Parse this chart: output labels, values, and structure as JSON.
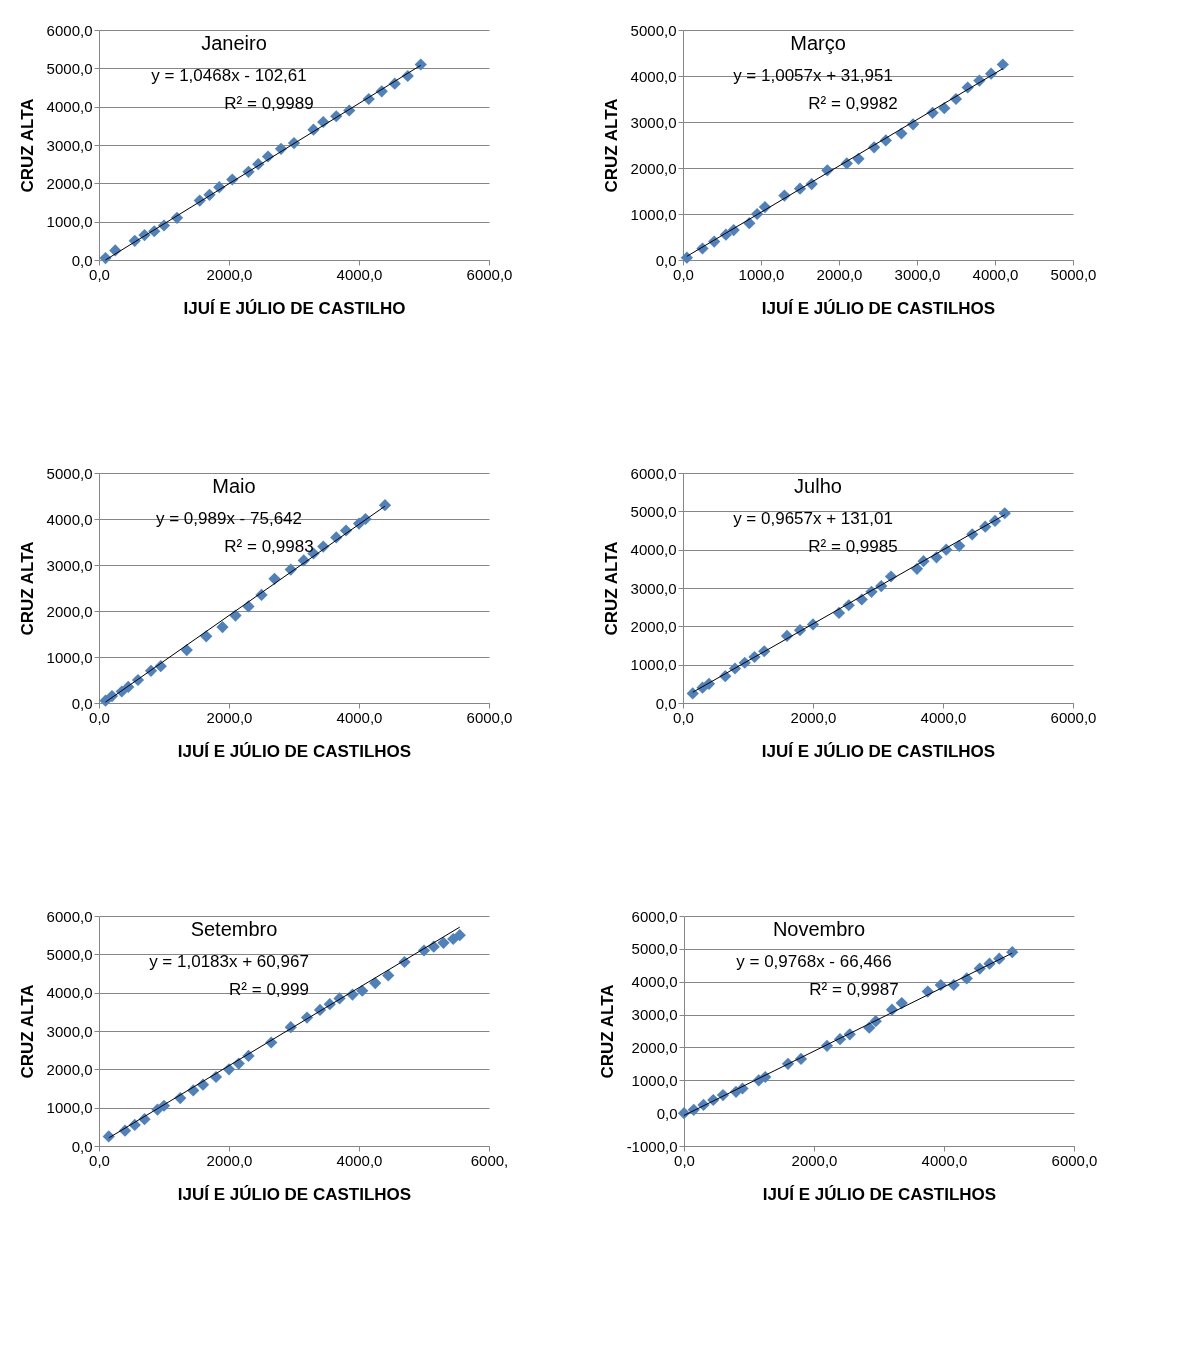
{
  "chart_data": [
    {
      "type": "scatter",
      "title": "Janeiro",
      "xlabel": "IJUÍ E JÚLIO DE CASTILHO",
      "ylabel": "CRUZ ALTA",
      "annotations": [
        "y = 1,0468x - 102,61",
        "R² = 0,9989"
      ],
      "grid": "y",
      "xlim": [
        0,
        6000
      ],
      "ylim": [
        0,
        6000
      ],
      "xticks": [
        {
          "value": 0,
          "label": "0,0"
        },
        {
          "value": 2000,
          "label": "2000,0"
        },
        {
          "value": 4000,
          "label": "4000,0"
        },
        {
          "value": 6000,
          "label": "6000,0"
        }
      ],
      "yticks": [
        {
          "value": 0,
          "label": "0,0"
        },
        {
          "value": 1000,
          "label": "1000,0"
        },
        {
          "value": 2000,
          "label": "2000,0"
        },
        {
          "value": 3000,
          "label": "3000,0"
        },
        {
          "value": 4000,
          "label": "4000,0"
        },
        {
          "value": 5000,
          "label": "5000,0"
        },
        {
          "value": 6000,
          "label": "6000,0"
        }
      ],
      "series": [
        {
          "type": "scatter",
          "marker": "diamond",
          "color": "#4f81bd",
          "x": [
            100,
            250,
            550,
            700,
            850,
            1000,
            1200,
            1550,
            1700,
            1850,
            2050,
            2300,
            2450,
            2600,
            2800,
            3000,
            3300,
            3450,
            3650,
            3850,
            4150,
            4350,
            4550,
            4750,
            4950
          ],
          "values": [
            50,
            250,
            500,
            650,
            750,
            900,
            1100,
            1550,
            1700,
            1900,
            2100,
            2300,
            2500,
            2700,
            2900,
            3050,
            3400,
            3600,
            3750,
            3900,
            4200,
            4400,
            4600,
            4800,
            5100
          ]
        },
        {
          "type": "line",
          "color": "#000000",
          "x": [
            100,
            4950
          ],
          "values": [
            0,
            5080
          ]
        }
      ]
    },
    {
      "type": "scatter",
      "title": "Março",
      "xlabel": "IJUÍ E JÚLIO DE CASTILHOS",
      "ylabel": "CRUZ ALTA",
      "annotations": [
        "y = 1,0057x + 31,951",
        "R² = 0,9982"
      ],
      "grid": "y",
      "xlim": [
        0,
        5000
      ],
      "ylim": [
        0,
        5000
      ],
      "xticks": [
        {
          "value": 0,
          "label": "0,0"
        },
        {
          "value": 1000,
          "label": "1000,0"
        },
        {
          "value": 2000,
          "label": "2000,0"
        },
        {
          "value": 3000,
          "label": "3000,0"
        },
        {
          "value": 4000,
          "label": "4000,0"
        },
        {
          "value": 5000,
          "label": "5000,0"
        }
      ],
      "yticks": [
        {
          "value": 0,
          "label": "0,0"
        },
        {
          "value": 1000,
          "label": "1000,0"
        },
        {
          "value": 2000,
          "label": "2000,0"
        },
        {
          "value": 3000,
          "label": "3000,0"
        },
        {
          "value": 4000,
          "label": "4000,0"
        },
        {
          "value": 5000,
          "label": "5000,0"
        }
      ],
      "series": [
        {
          "type": "scatter",
          "marker": "diamond",
          "color": "#4f81bd",
          "x": [
            50,
            250,
            400,
            550,
            650,
            850,
            950,
            1050,
            1300,
            1500,
            1650,
            1850,
            2100,
            2250,
            2450,
            2600,
            2800,
            2950,
            3200,
            3350,
            3500,
            3650,
            3800,
            3950,
            4100
          ],
          "values": [
            50,
            250,
            400,
            550,
            650,
            800,
            1000,
            1150,
            1400,
            1550,
            1650,
            1950,
            2100,
            2200,
            2450,
            2600,
            2750,
            2950,
            3200,
            3300,
            3500,
            3750,
            3900,
            4050,
            4250
          ]
        },
        {
          "type": "line",
          "color": "#000000",
          "x": [
            50,
            4100
          ],
          "values": [
            80,
            4160
          ]
        }
      ]
    },
    {
      "type": "scatter",
      "title": "Maio",
      "xlabel": "IJUÍ E JÚLIO DE CASTILHOS",
      "ylabel": "CRUZ ALTA",
      "annotations": [
        "y = 0,989x - 75,642",
        "R² = 0,9983"
      ],
      "grid": "y",
      "xlim": [
        0,
        6000
      ],
      "ylim": [
        0,
        5000
      ],
      "xticks": [
        {
          "value": 0,
          "label": "0,0"
        },
        {
          "value": 2000,
          "label": "2000,0"
        },
        {
          "value": 4000,
          "label": "4000,0"
        },
        {
          "value": 6000,
          "label": "6000,0"
        }
      ],
      "yticks": [
        {
          "value": 0,
          "label": "0,0"
        },
        {
          "value": 1000,
          "label": "1000,0"
        },
        {
          "value": 2000,
          "label": "2000,0"
        },
        {
          "value": 3000,
          "label": "3000,0"
        },
        {
          "value": 4000,
          "label": "4000,0"
        },
        {
          "value": 5000,
          "label": "5000,0"
        }
      ],
      "series": [
        {
          "type": "scatter",
          "marker": "diamond",
          "color": "#4f81bd",
          "x": [
            100,
            200,
            350,
            450,
            600,
            800,
            950,
            1350,
            1650,
            1900,
            2100,
            2300,
            2500,
            2700,
            2950,
            3150,
            3300,
            3450,
            3650,
            3800,
            4000,
            4100,
            4400
          ],
          "values": [
            50,
            150,
            250,
            350,
            500,
            700,
            800,
            1150,
            1450,
            1650,
            1900,
            2100,
            2350,
            2700,
            2900,
            3100,
            3250,
            3400,
            3600,
            3750,
            3900,
            4000,
            4300
          ]
        },
        {
          "type": "line",
          "color": "#000000",
          "x": [
            100,
            4400
          ],
          "values": [
            20,
            4280
          ]
        }
      ]
    },
    {
      "type": "scatter",
      "title": "Julho",
      "xlabel": "IJUÍ E JÚLIO DE CASTILHOS",
      "ylabel": "CRUZ ALTA",
      "annotations": [
        "y = 0,9657x + 131,01",
        "R² = 0,9985"
      ],
      "grid": "y",
      "xlim": [
        0,
        6000
      ],
      "ylim": [
        0,
        6000
      ],
      "xticks": [
        {
          "value": 0,
          "label": "0,0"
        },
        {
          "value": 2000,
          "label": "2000,0"
        },
        {
          "value": 4000,
          "label": "4000,0"
        },
        {
          "value": 6000,
          "label": "6000,0"
        }
      ],
      "yticks": [
        {
          "value": 0,
          "label": "0,0"
        },
        {
          "value": 1000,
          "label": "1000,0"
        },
        {
          "value": 2000,
          "label": "2000,0"
        },
        {
          "value": 3000,
          "label": "3000,0"
        },
        {
          "value": 4000,
          "label": "4000,0"
        },
        {
          "value": 5000,
          "label": "5000,0"
        },
        {
          "value": 6000,
          "label": "6000,0"
        }
      ],
      "series": [
        {
          "type": "scatter",
          "marker": "diamond",
          "color": "#4f81bd",
          "x": [
            150,
            300,
            400,
            650,
            800,
            950,
            1100,
            1250,
            1600,
            1800,
            2000,
            2400,
            2550,
            2750,
            2900,
            3050,
            3200,
            3600,
            3700,
            3900,
            4050,
            4250,
            4450,
            4650,
            4800,
            4950
          ],
          "values": [
            250,
            400,
            500,
            700,
            900,
            1050,
            1200,
            1350,
            1750,
            1900,
            2050,
            2350,
            2550,
            2700,
            2900,
            3050,
            3300,
            3500,
            3700,
            3800,
            4000,
            4100,
            4400,
            4600,
            4750,
            4950
          ]
        },
        {
          "type": "line",
          "color": "#000000",
          "x": [
            150,
            4950
          ],
          "values": [
            280,
            4910
          ]
        }
      ]
    },
    {
      "type": "scatter",
      "title": "Setembro",
      "xlabel": "IJUÍ E JÚLIO DE CASTILHOS",
      "ylabel": "CRUZ ALTA",
      "annotations": [
        "y = 1,0183x + 60,967",
        "R² = 0,999"
      ],
      "grid": "y",
      "xlim": [
        0,
        6000
      ],
      "ylim": [
        0,
        6000
      ],
      "xticks": [
        {
          "value": 0,
          "label": "0,0"
        },
        {
          "value": 2000,
          "label": "2000,0"
        },
        {
          "value": 4000,
          "label": "4000,0"
        },
        {
          "value": 6000,
          "label": "6000,"
        }
      ],
      "yticks": [
        {
          "value": 0,
          "label": "0,0"
        },
        {
          "value": 1000,
          "label": "1000,0"
        },
        {
          "value": 2000,
          "label": "2000,0"
        },
        {
          "value": 3000,
          "label": "3000,0"
        },
        {
          "value": 4000,
          "label": "4000,0"
        },
        {
          "value": 5000,
          "label": "5000,0"
        },
        {
          "value": 6000,
          "label": "6000,0"
        }
      ],
      "series": [
        {
          "type": "scatter",
          "marker": "diamond",
          "color": "#4f81bd",
          "x": [
            150,
            400,
            550,
            700,
            900,
            1000,
            1250,
            1450,
            1600,
            1800,
            2000,
            2150,
            2300,
            2650,
            2950,
            3200,
            3400,
            3550,
            3700,
            3900,
            4050,
            4250,
            4450,
            4700,
            5000,
            5150,
            5300,
            5450,
            5550
          ],
          "values": [
            250,
            400,
            550,
            700,
            950,
            1050,
            1250,
            1450,
            1600,
            1800,
            2000,
            2150,
            2350,
            2700,
            3100,
            3350,
            3550,
            3700,
            3850,
            3950,
            4050,
            4250,
            4450,
            4800,
            5100,
            5200,
            5300,
            5400,
            5500
          ]
        },
        {
          "type": "line",
          "color": "#000000",
          "x": [
            150,
            5550
          ],
          "values": [
            210,
            5710
          ]
        }
      ]
    },
    {
      "type": "scatter",
      "title": "Novembro",
      "xlabel": "IJUÍ E JÚLIO DE CASTILHOS",
      "ylabel": "CRUZ ALTA",
      "annotations": [
        "y = 0,9768x - 66,466",
        "R² = 0,9987"
      ],
      "grid": "y",
      "xlim": [
        0,
        6000
      ],
      "ylim": [
        -1000,
        6000
      ],
      "xticks": [
        {
          "value": 0,
          "label": "0,0"
        },
        {
          "value": 2000,
          "label": "2000,0"
        },
        {
          "value": 4000,
          "label": "4000,0"
        },
        {
          "value": 6000,
          "label": "6000,0"
        }
      ],
      "yticks": [
        {
          "value": -1000,
          "label": "-1000,0"
        },
        {
          "value": 0,
          "label": "0,0"
        },
        {
          "value": 1000,
          "label": "1000,0"
        },
        {
          "value": 2000,
          "label": "2000,0"
        },
        {
          "value": 3000,
          "label": "3000,0"
        },
        {
          "value": 4000,
          "label": "4000,0"
        },
        {
          "value": 5000,
          "label": "5000,0"
        },
        {
          "value": 6000,
          "label": "6000,0"
        }
      ],
      "series": [
        {
          "type": "scatter",
          "marker": "diamond",
          "color": "#4f81bd",
          "x": [
            0,
            150,
            300,
            450,
            600,
            800,
            900,
            1150,
            1250,
            1600,
            1800,
            2200,
            2400,
            2550,
            2850,
            2950,
            3200,
            3350,
            3750,
            3950,
            4150,
            4350,
            4550,
            4700,
            4850,
            5050
          ],
          "values": [
            0,
            100,
            250,
            400,
            550,
            650,
            750,
            1000,
            1100,
            1500,
            1650,
            2050,
            2250,
            2400,
            2600,
            2800,
            3150,
            3350,
            3700,
            3900,
            3900,
            4100,
            4400,
            4550,
            4700,
            4900
          ]
        },
        {
          "type": "line",
          "color": "#000000",
          "x": [
            0,
            5050
          ],
          "values": [
            -70,
            4870
          ]
        }
      ]
    }
  ]
}
